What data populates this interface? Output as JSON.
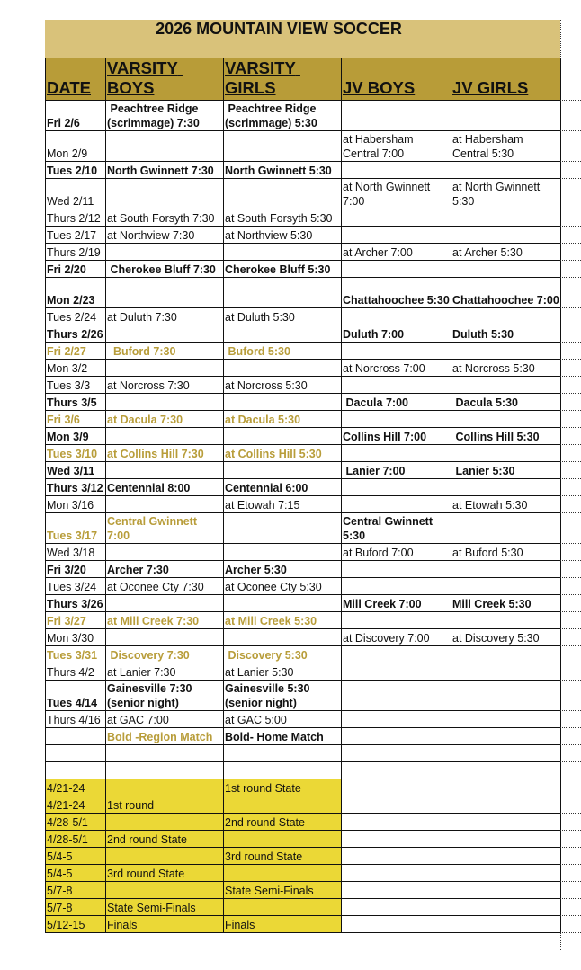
{
  "title": "2026 MOUNTAIN VIEW SOCCER",
  "headers": [
    "DATE",
    "VARSITY BOYS",
    "VARSITY GIRLS",
    "JV BOYS",
    "JV GIRLS"
  ],
  "colors": {
    "title_bg": "#d9c27a",
    "header_bg": "#b89c38",
    "region_text": "#b89d3a",
    "state_bg": "#ebd836"
  },
  "rows": [
    {
      "style": "bold",
      "tall": true,
      "cells": [
        "Fri 2/6",
        " Peachtree Ridge (scrimmage) 7:30",
        " Peachtree Ridge (scrimmage) 5:30",
        "",
        ""
      ]
    },
    {
      "style": "normal",
      "tall": true,
      "cells": [
        "Mon 2/9",
        "",
        "",
        "at Habersham Central 7:00",
        "at Habersham Central 5:30"
      ]
    },
    {
      "style": "bold",
      "cells": [
        "Tues 2/10",
        "North Gwinnett 7:30",
        "North Gwinnett 5:30",
        "",
        ""
      ]
    },
    {
      "style": "normal",
      "tall": true,
      "cells": [
        "Wed 2/11",
        "",
        "",
        "at North Gwinnett 7:00",
        "at North Gwinnett 5:30"
      ]
    },
    {
      "style": "normal",
      "cells": [
        "Thurs 2/12",
        "at South Forsyth 7:30",
        "at South Forsyth 5:30",
        "",
        ""
      ]
    },
    {
      "style": "normal",
      "cells": [
        "Tues 2/17",
        "at Northview 7:30",
        "at Northview 5:30",
        "",
        ""
      ]
    },
    {
      "style": "normal",
      "cells": [
        "Thurs 2/19",
        "",
        "",
        "at Archer 7:00",
        "at Archer 5:30"
      ]
    },
    {
      "style": "bold",
      "cells": [
        "Fri 2/20",
        " Cherokee Bluff 7:30",
        "Cherokee Bluff 5:30",
        "",
        ""
      ]
    },
    {
      "style": "bold",
      "tall": true,
      "cells": [
        "Mon 2/23",
        "",
        "",
        "Chattahoochee 5:30",
        "Chattahoochee 7:00"
      ]
    },
    {
      "style": "normal",
      "cells": [
        "Tues 2/24",
        "at Duluth 7:30",
        "at Duluth 5:30",
        "",
        ""
      ]
    },
    {
      "style": "bold",
      "cells": [
        "Thurs 2/26",
        "",
        "",
        "Duluth 7:00",
        "Duluth 5:30"
      ]
    },
    {
      "style": "region",
      "cells": [
        "Fri 2/27",
        "  Buford 7:30",
        " Buford 5:30",
        "",
        ""
      ]
    },
    {
      "style": "normal",
      "cells": [
        "Mon 3/2",
        "",
        "",
        "at Norcross 7:00",
        "at Norcross 5:30"
      ]
    },
    {
      "style": "normal",
      "cells": [
        "Tues 3/3",
        "at Norcross 7:30",
        "at Norcross 5:30",
        "",
        ""
      ]
    },
    {
      "style": "bold",
      "cells": [
        "Thurs 3/5",
        "",
        "",
        " Dacula 7:00",
        " Dacula 5:30"
      ]
    },
    {
      "style": "region",
      "cells": [
        "Fri 3/6",
        "at Dacula 7:30",
        "at Dacula 5:30",
        "",
        ""
      ]
    },
    {
      "style": "bold",
      "cells": [
        "Mon 3/9",
        "",
        "",
        "Collins Hill 7:00",
        " Collins Hill 5:30"
      ]
    },
    {
      "style": "region",
      "cells": [
        "Tues 3/10",
        "at Collins Hill 7:30",
        "at Collins Hill 5:30",
        "",
        ""
      ]
    },
    {
      "style": "bold",
      "cells": [
        "Wed 3/11",
        "",
        "",
        " Lanier 7:00",
        " Lanier 5:30"
      ]
    },
    {
      "style": "bold",
      "cells": [
        "Thurs 3/12",
        "Centennial 8:00",
        "Centennial 6:00",
        "",
        ""
      ]
    },
    {
      "style": "normal",
      "cells": [
        "Mon 3/16",
        "",
        "at Etowah 7:15",
        "",
        "at Etowah 5:30"
      ]
    },
    {
      "style": "region",
      "tall": true,
      "cells": [
        "Tues 3/17",
        "Central Gwinnett 7:00",
        "",
        "Central Gwinnett 5:30",
        ""
      ]
    },
    {
      "style": "normal",
      "cells": [
        "Wed 3/18",
        "",
        "",
        "at Buford 7:00",
        "at Buford 5:30"
      ]
    },
    {
      "style": "bold",
      "cells": [
        "Fri 3/20",
        "Archer 7:30",
        "Archer 5:30",
        "",
        ""
      ]
    },
    {
      "style": "normal",
      "cells": [
        "Tues 3/24",
        "at Oconee Cty 7:30",
        "at Oconee Cty 5:30",
        "",
        ""
      ]
    },
    {
      "style": "bold",
      "cells": [
        "Thurs 3/26",
        "",
        "",
        "Mill Creek 7:00",
        "Mill Creek 5:30"
      ]
    },
    {
      "style": "region",
      "cells": [
        "Fri 3/27",
        "at Mill Creek 7:30",
        "at Mill Creek 5:30",
        "",
        ""
      ]
    },
    {
      "style": "normal",
      "cells": [
        "Mon 3/30",
        "",
        "",
        "at Discovery 7:00",
        "at Discovery 5:30"
      ]
    },
    {
      "style": "region",
      "cells": [
        "Tues 3/31",
        " Discovery 7:30",
        " Discovery 5:30",
        "",
        ""
      ]
    },
    {
      "style": "normal",
      "cells": [
        "Thurs 4/2",
        "at Lanier 7:30",
        "at Lanier 5:30",
        "",
        ""
      ]
    },
    {
      "style": "bold",
      "tall": true,
      "cells": [
        "Tues 4/14",
        "Gainesville 7:30 (senior night)",
        "Gainesville 5:30 (senior night)",
        "",
        ""
      ]
    },
    {
      "style": "normal",
      "cells": [
        "Thurs 4/16",
        "at GAC 7:00",
        "at GAC 5:00",
        "",
        ""
      ]
    },
    {
      "style": "legend",
      "cells": [
        "",
        "Bold -Region Match",
        "Bold- Home Match",
        "",
        ""
      ]
    },
    {
      "style": "normal",
      "cells": [
        "",
        "",
        "",
        "",
        ""
      ]
    },
    {
      "style": "normal",
      "cells": [
        "",
        "",
        "",
        "",
        ""
      ]
    },
    {
      "style": "state",
      "cells": [
        "4/21-24",
        "",
        "1st round State",
        "",
        ""
      ]
    },
    {
      "style": "state",
      "cells": [
        "4/21-24",
        "1st round",
        "",
        "",
        ""
      ]
    },
    {
      "style": "state",
      "cells": [
        "4/28-5/1",
        "",
        "2nd round State",
        "",
        ""
      ]
    },
    {
      "style": "state",
      "cells": [
        "4/28-5/1",
        "2nd round State",
        "",
        "",
        ""
      ]
    },
    {
      "style": "state",
      "cells": [
        "5/4-5",
        "",
        "3rd round State",
        "",
        ""
      ]
    },
    {
      "style": "state",
      "cells": [
        "5/4-5",
        "3rd round State",
        "",
        "",
        ""
      ]
    },
    {
      "style": "state",
      "cells": [
        "5/7-8",
        "",
        "State Semi-Finals",
        "",
        ""
      ]
    },
    {
      "style": "state",
      "cells": [
        "5/7-8",
        "State Semi-Finals",
        "",
        "",
        ""
      ]
    },
    {
      "style": "state",
      "cells": [
        "5/12-15",
        "Finals",
        "Finals",
        "",
        ""
      ]
    }
  ]
}
